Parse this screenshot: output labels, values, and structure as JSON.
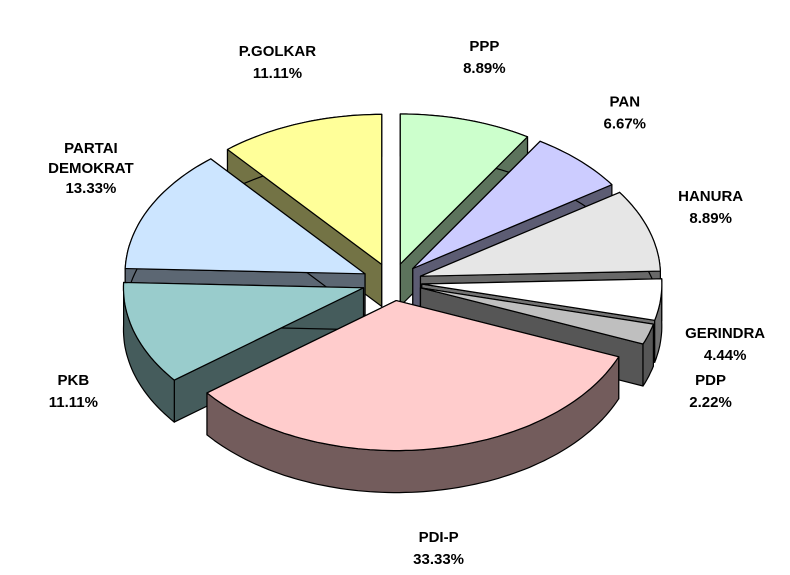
{
  "chart_data": {
    "type": "pie3d",
    "categories": [
      "PPP",
      "PAN",
      "HANURA",
      "GERINDRA",
      "PDP",
      "PDI-P",
      "PKB",
      "PARTAI DEMOKRAT",
      "P.GOLKAR"
    ],
    "values": [
      8.89,
      6.67,
      8.89,
      4.44,
      2.22,
      33.33,
      11.11,
      13.33,
      11.11
    ],
    "value_labels": [
      "8.89%",
      "6.67%",
      "8.89%",
      "4.44%",
      "2.22%",
      "33.33%",
      "11.11%",
      "13.33%",
      "11.11%"
    ],
    "colors": [
      "#ccffcc",
      "#ccccff",
      "#e6e6e6",
      "#ffffff",
      "#bfbfbf",
      "#ffcccc",
      "#99cccc",
      "#cce5ff",
      "#ffff99"
    ]
  }
}
